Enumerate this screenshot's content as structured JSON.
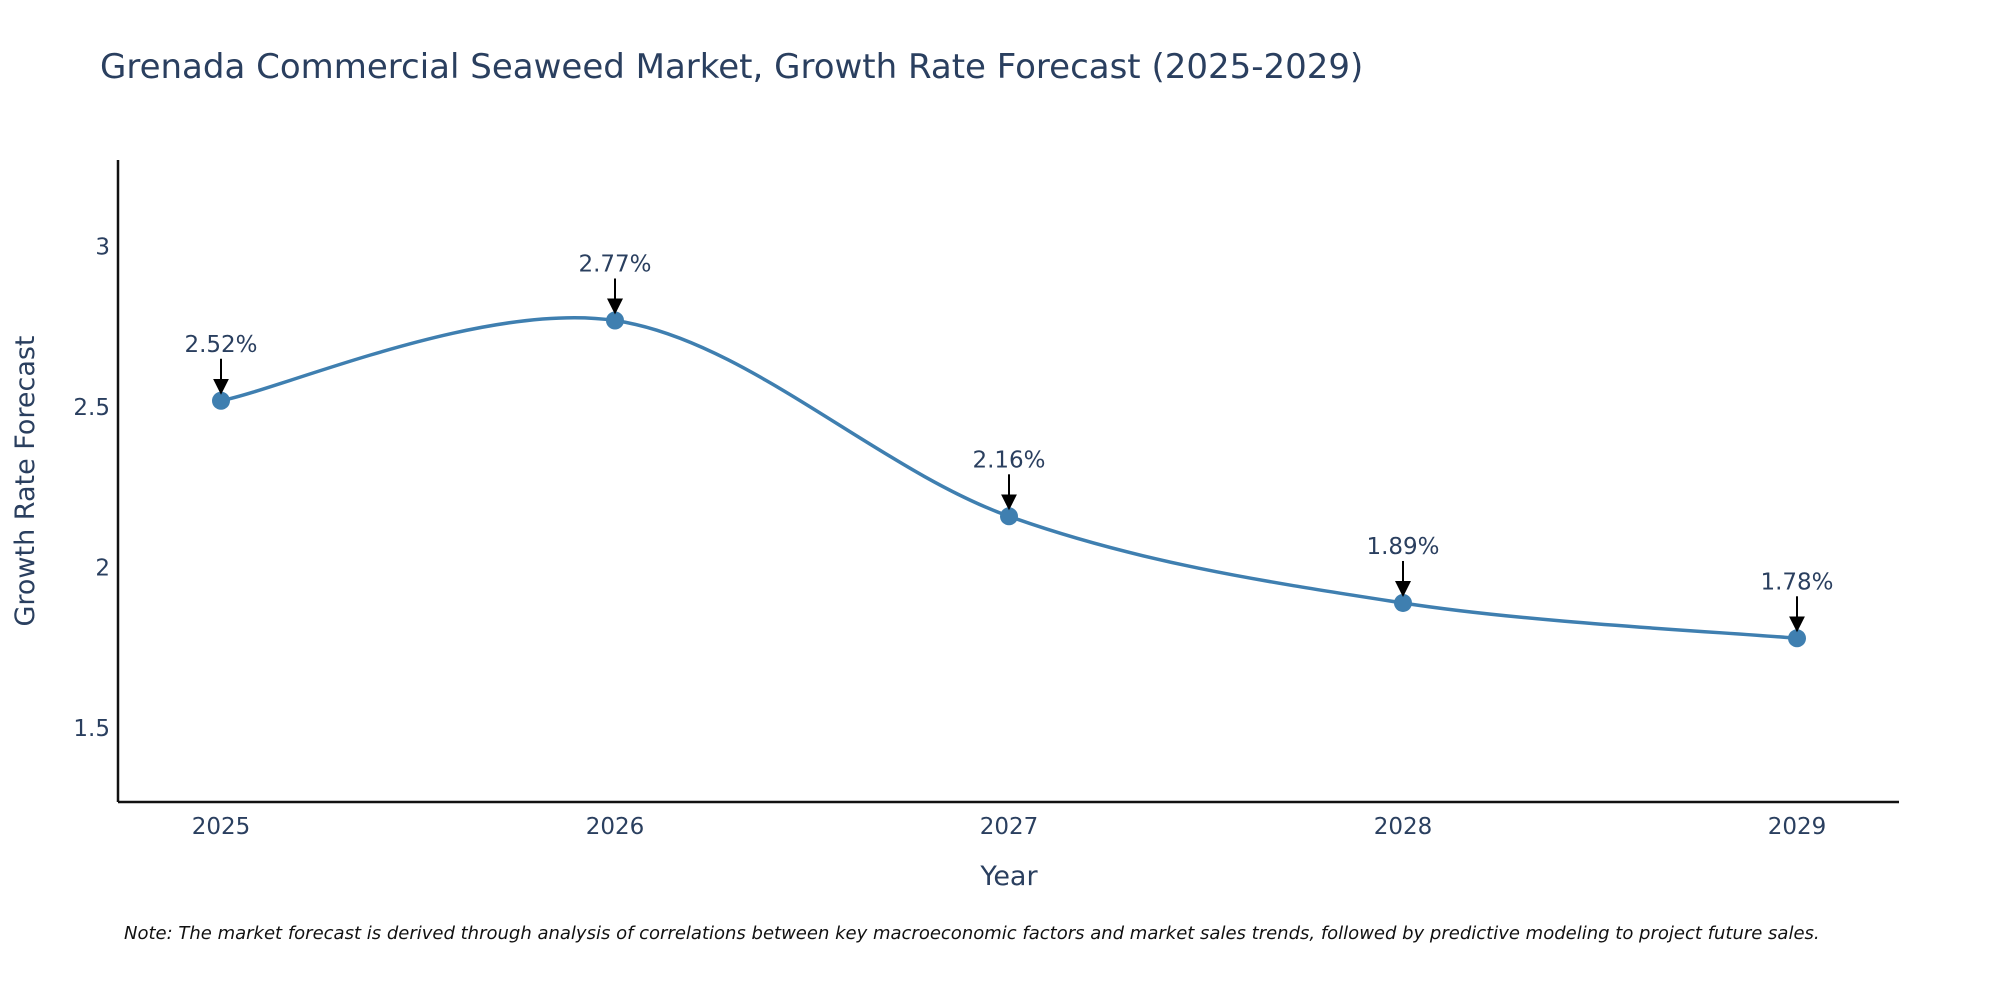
{
  "chart_data": {
    "type": "line",
    "title": "Grenada Commercial Seaweed Market, Growth Rate Forecast (2025-2029)",
    "xlabel": "Year",
    "ylabel": "Growth Rate Forecast",
    "categories": [
      "2025",
      "2026",
      "2027",
      "2028",
      "2029"
    ],
    "series": [
      {
        "name": "Growth Rate Forecast",
        "values": [
          2.52,
          2.77,
          2.16,
          1.89,
          1.78
        ],
        "color": "#3f7fb0"
      }
    ],
    "data_labels": [
      "2.52%",
      "2.77%",
      "2.16%",
      "1.89%",
      "1.78%"
    ],
    "yticks": [
      1.5,
      2,
      2.5,
      3
    ],
    "ytick_labels": [
      "1.5",
      "2",
      "2.5",
      "3"
    ],
    "ylim": [
      1.27,
      3.27
    ],
    "grid": false,
    "line_shape": "spline",
    "note": "Note: The market forecast is derived through analysis of correlations between key macroeconomic factors and market sales trends, followed by predictive modeling to project future sales."
  }
}
